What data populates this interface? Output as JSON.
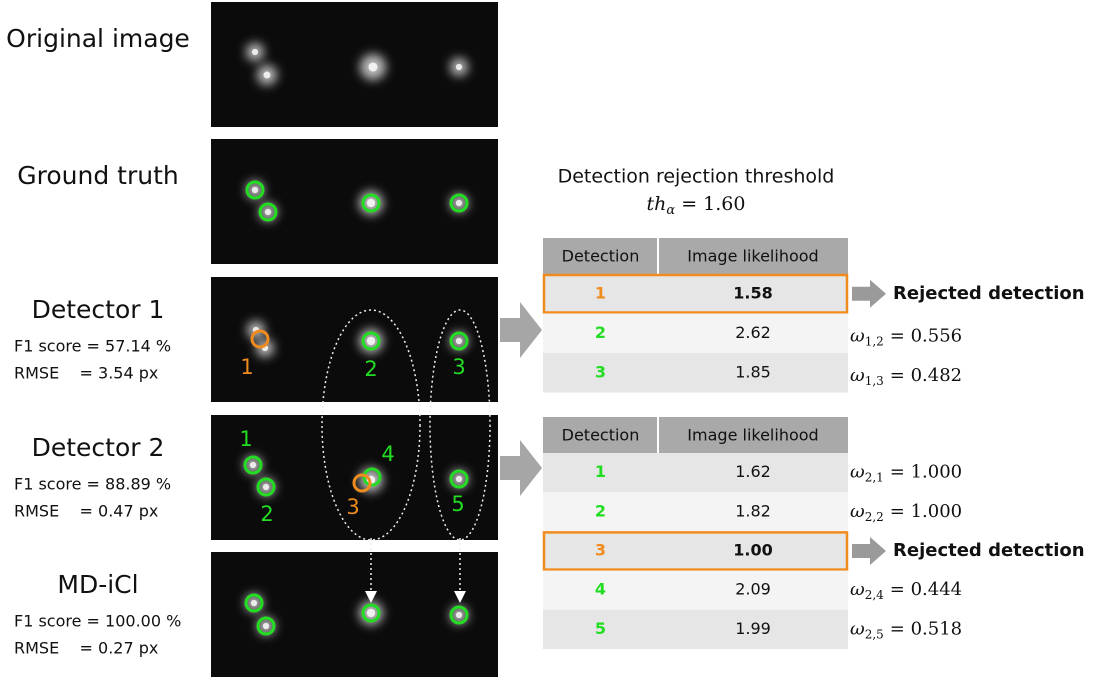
{
  "rows": [
    {
      "title": "Original image"
    },
    {
      "title": "Ground truth"
    },
    {
      "title": "Detector 1",
      "f1": "F1 score = 57.14 %",
      "rmse": "RMSE    = 3.54 px",
      "labels": [
        "1",
        "2",
        "3"
      ]
    },
    {
      "title": "Detector 2",
      "f1": "F1 score = 88.89 %",
      "rmse": "RMSE    = 0.47 px",
      "labels": [
        "1",
        "2",
        "3",
        "4",
        "5"
      ]
    },
    {
      "title": "MD-iCl",
      "f1": "F1 score = 100.00 %",
      "rmse": "RMSE    = 0.27 px"
    }
  ],
  "threshold": {
    "title": "Detection rejection threshold",
    "symbol": "th",
    "subscript": "α",
    "value": "= 1.60"
  },
  "tables": [
    {
      "headers": [
        "Detection",
        "Image likelihood"
      ],
      "rows": [
        [
          "1",
          "1.58"
        ],
        [
          "2",
          "2.62"
        ],
        [
          "3",
          "1.85"
        ]
      ],
      "rejected": "Rejected detection",
      "weights": [
        null,
        {
          "symbol": "ω",
          "subscript": "1,2",
          "value": "= 0.556"
        },
        {
          "symbol": "ω",
          "subscript": "1,3",
          "value": "= 0.482"
        }
      ]
    },
    {
      "headers": [
        "Detection",
        "Image likelihood"
      ],
      "rows": [
        [
          "1",
          "1.62"
        ],
        [
          "2",
          "1.82"
        ],
        [
          "3",
          "1.00"
        ],
        [
          "4",
          "2.09"
        ],
        [
          "5",
          "1.99"
        ]
      ],
      "rejected": "Rejected detection",
      "weights": [
        {
          "symbol": "ω",
          "subscript": "2,1",
          "value": "= 1.000"
        },
        {
          "symbol": "ω",
          "subscript": "2,2",
          "value": "= 1.000"
        },
        null,
        {
          "symbol": "ω",
          "subscript": "2,4",
          "value": "= 0.444"
        },
        {
          "symbol": "ω",
          "subscript": "2,5",
          "value": "= 0.518"
        }
      ]
    }
  ]
}
